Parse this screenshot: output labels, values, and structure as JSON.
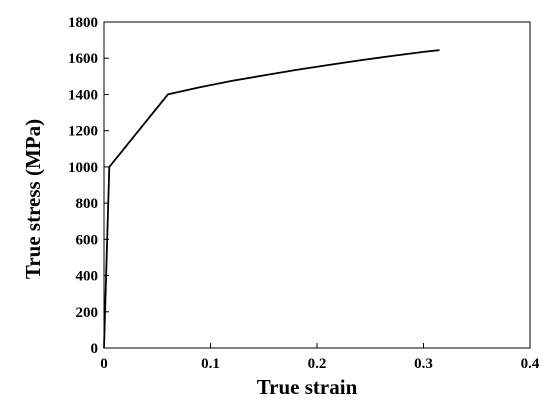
{
  "chart_data": {
    "type": "line",
    "title": "",
    "xlabel": "True strain",
    "ylabel": "True stress (MPa)",
    "xlim": [
      0,
      0.4
    ],
    "ylim": [
      0,
      1800
    ],
    "x_ticks": [
      "0",
      "0.1",
      "0.2",
      "0.3",
      "0.4"
    ],
    "y_ticks": [
      "0",
      "200",
      "400",
      "600",
      "800",
      "1000",
      "1200",
      "1400",
      "1600",
      "1800"
    ],
    "grid": false,
    "legend": "none",
    "series": [
      {
        "color": "#000000",
        "x": [
          0,
          0.005,
          0.06,
          0.09,
          0.12,
          0.15,
          0.18,
          0.21,
          0.24,
          0.27,
          0.3,
          0.315
        ],
        "y": [
          0,
          1000,
          1400,
          1440,
          1475,
          1505,
          1535,
          1562,
          1588,
          1612,
          1635,
          1645
        ]
      }
    ]
  }
}
